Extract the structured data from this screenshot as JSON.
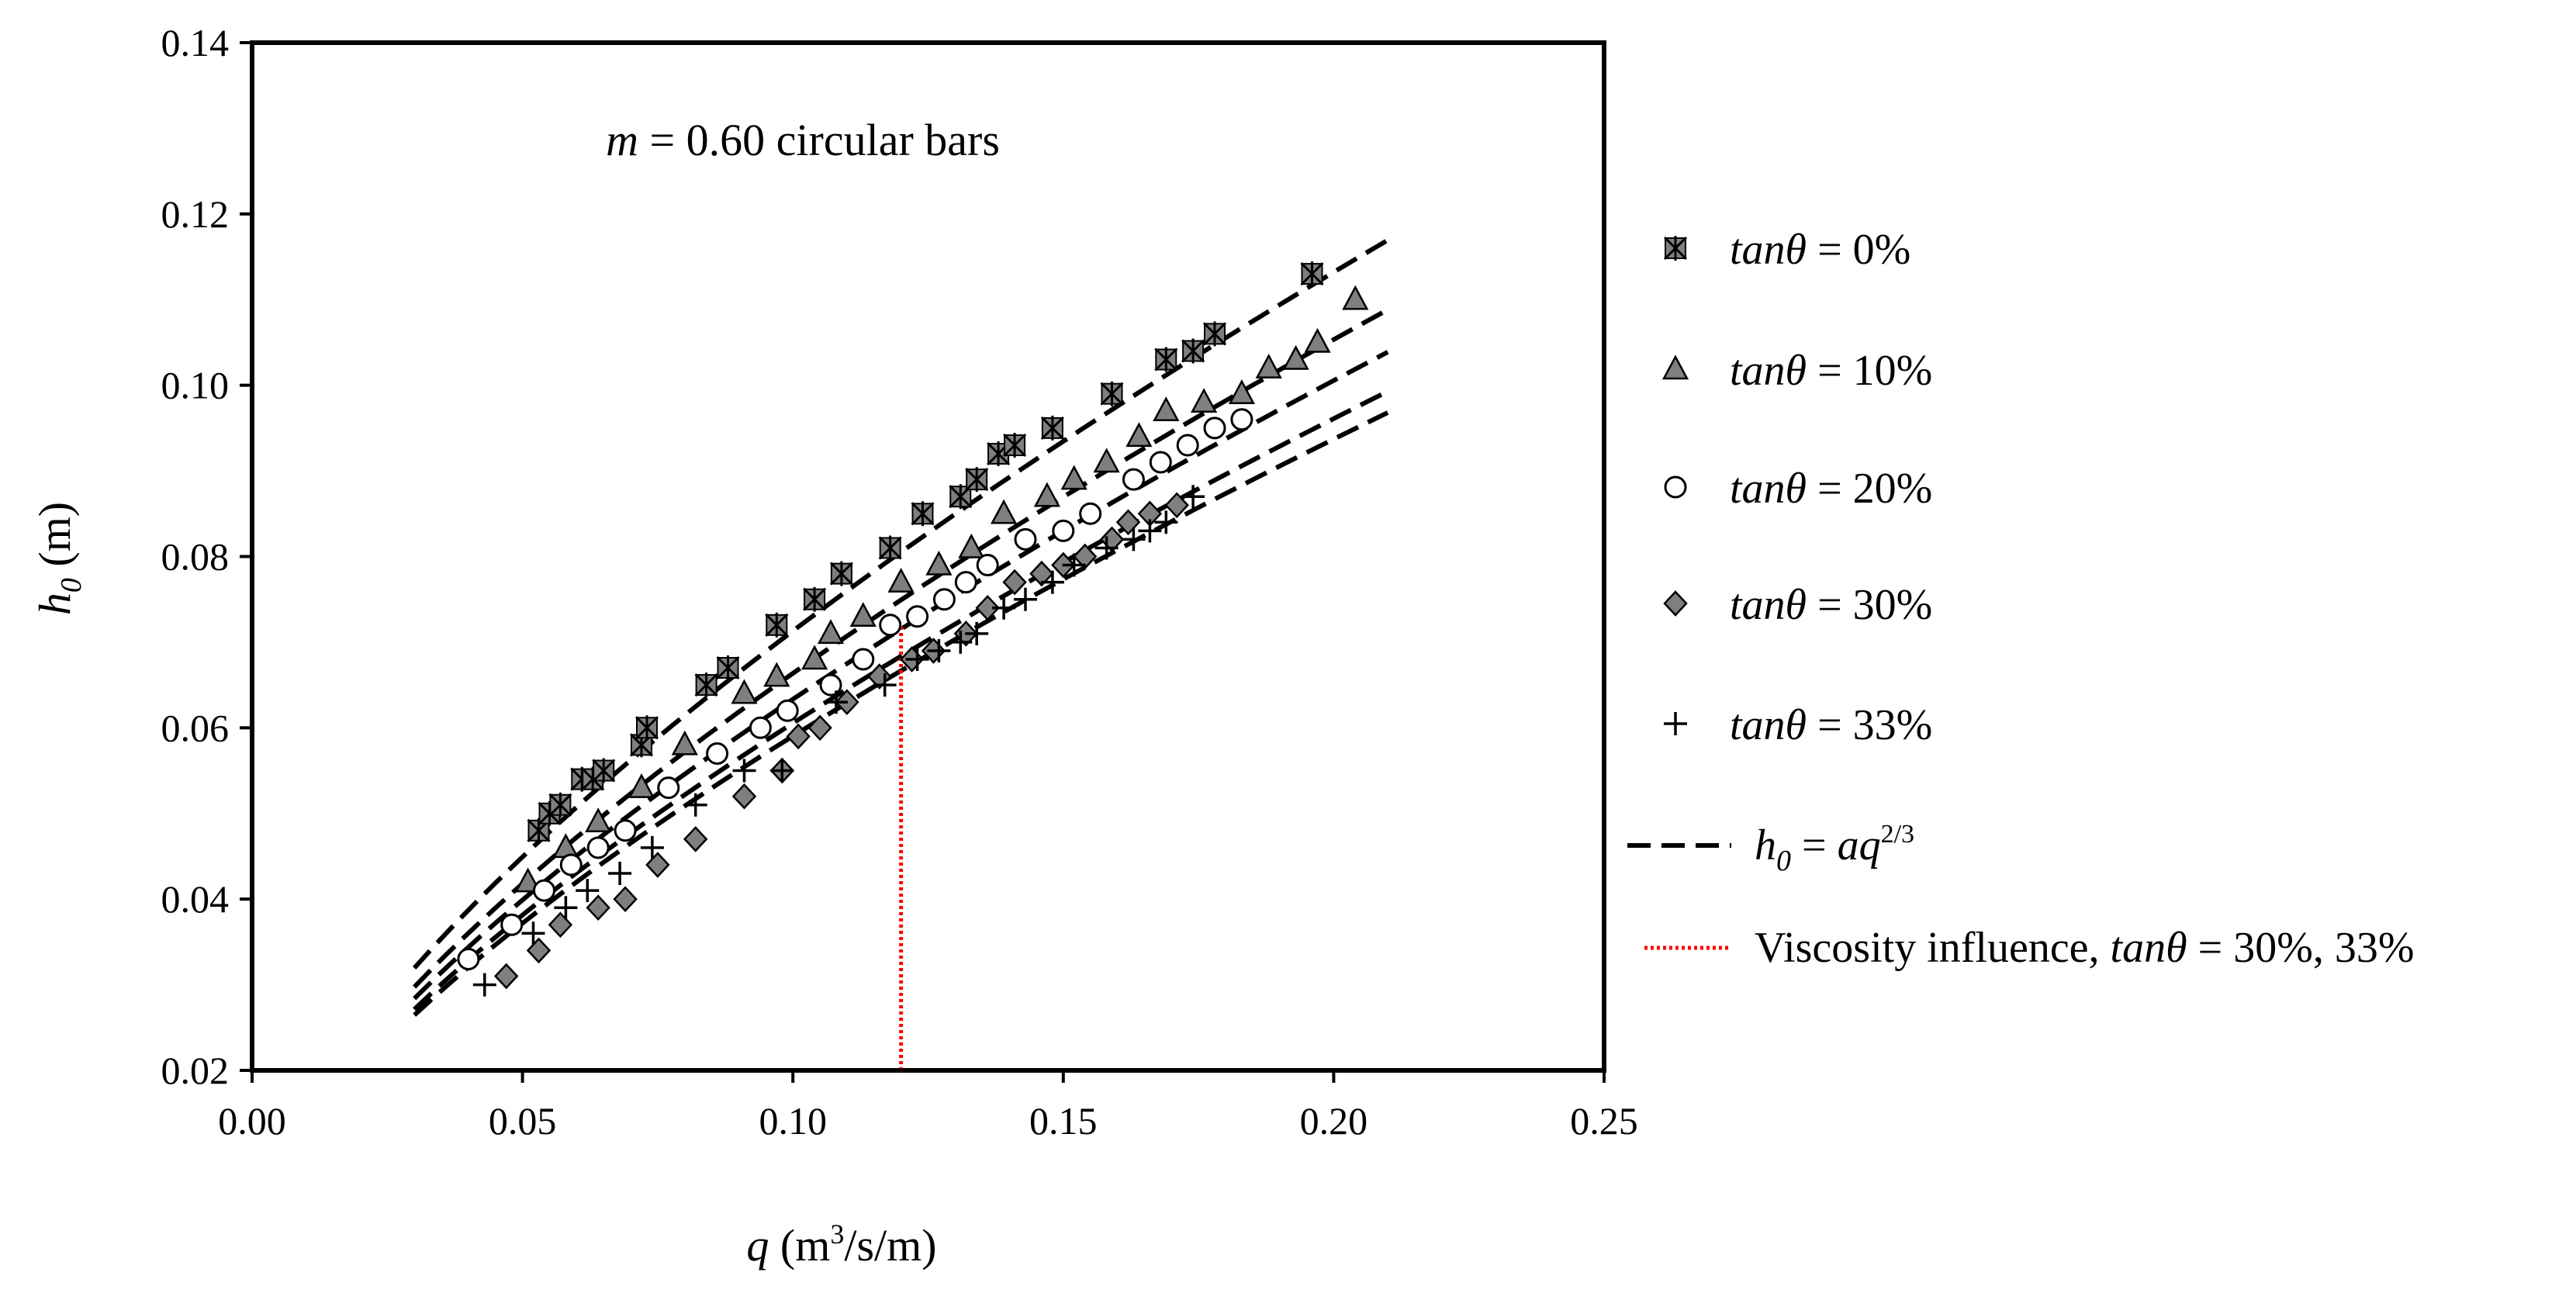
{
  "chart_data": {
    "type": "scatter",
    "annotation": {
      "var": "m",
      "text": " = 0.60 circular bars"
    },
    "xlabel": {
      "var": "q",
      "pre": " (m",
      "sup": "3",
      "post": "/s/m)"
    },
    "ylabel": {
      "var": "h",
      "sub": "0",
      "post": " (m)"
    },
    "xlim": [
      0.0,
      0.25
    ],
    "ylim": [
      0.02,
      0.14
    ],
    "xticks": [
      "0.00",
      "0.05",
      "0.10",
      "0.15",
      "0.20",
      "0.25"
    ],
    "yticks": [
      "0.02",
      "0.04",
      "0.06",
      "0.08",
      "0.10",
      "0.12",
      "0.14"
    ],
    "grid": false,
    "legend_position": "right",
    "colors": {
      "marker_fill": "#7f7f7f",
      "marker_stroke": "#000000",
      "fit_line": "#000000",
      "viscosity_line": "#ff0000"
    },
    "series": [
      {
        "name": "tanθ = 0%",
        "legend": {
          "var": "tanθ",
          "value": " = 0%"
        },
        "marker": "asterisk-square",
        "points": [
          [
            0.053,
            0.048
          ],
          [
            0.055,
            0.05
          ],
          [
            0.057,
            0.051
          ],
          [
            0.061,
            0.054
          ],
          [
            0.063,
            0.054
          ],
          [
            0.065,
            0.055
          ],
          [
            0.072,
            0.058
          ],
          [
            0.073,
            0.06
          ],
          [
            0.084,
            0.065
          ],
          [
            0.088,
            0.067
          ],
          [
            0.097,
            0.072
          ],
          [
            0.104,
            0.075
          ],
          [
            0.109,
            0.078
          ],
          [
            0.118,
            0.081
          ],
          [
            0.124,
            0.085
          ],
          [
            0.131,
            0.087
          ],
          [
            0.134,
            0.089
          ],
          [
            0.138,
            0.092
          ],
          [
            0.141,
            0.093
          ],
          [
            0.148,
            0.095
          ],
          [
            0.159,
            0.099
          ],
          [
            0.169,
            0.103
          ],
          [
            0.174,
            0.104
          ],
          [
            0.178,
            0.106
          ],
          [
            0.196,
            0.113
          ]
        ]
      },
      {
        "name": "tanθ = 10%",
        "legend": {
          "var": "tanθ",
          "value": " = 10%"
        },
        "marker": "triangle",
        "points": [
          [
            0.051,
            0.042
          ],
          [
            0.058,
            0.046
          ],
          [
            0.064,
            0.049
          ],
          [
            0.072,
            0.053
          ],
          [
            0.08,
            0.058
          ],
          [
            0.091,
            0.064
          ],
          [
            0.097,
            0.066
          ],
          [
            0.104,
            0.068
          ],
          [
            0.107,
            0.071
          ],
          [
            0.113,
            0.073
          ],
          [
            0.12,
            0.077
          ],
          [
            0.127,
            0.079
          ],
          [
            0.133,
            0.081
          ],
          [
            0.139,
            0.085
          ],
          [
            0.147,
            0.087
          ],
          [
            0.152,
            0.089
          ],
          [
            0.158,
            0.091
          ],
          [
            0.164,
            0.094
          ],
          [
            0.169,
            0.097
          ],
          [
            0.176,
            0.098
          ],
          [
            0.183,
            0.099
          ],
          [
            0.188,
            0.102
          ],
          [
            0.193,
            0.103
          ],
          [
            0.197,
            0.105
          ],
          [
            0.204,
            0.11
          ]
        ]
      },
      {
        "name": "tanθ = 20%",
        "legend": {
          "var": "tanθ",
          "value": " = 20%"
        },
        "marker": "circle",
        "points": [
          [
            0.04,
            0.033
          ],
          [
            0.048,
            0.037
          ],
          [
            0.054,
            0.041
          ],
          [
            0.059,
            0.044
          ],
          [
            0.064,
            0.046
          ],
          [
            0.069,
            0.048
          ],
          [
            0.077,
            0.053
          ],
          [
            0.086,
            0.057
          ],
          [
            0.094,
            0.06
          ],
          [
            0.099,
            0.062
          ],
          [
            0.107,
            0.065
          ],
          [
            0.113,
            0.068
          ],
          [
            0.118,
            0.072
          ],
          [
            0.123,
            0.073
          ],
          [
            0.128,
            0.075
          ],
          [
            0.132,
            0.077
          ],
          [
            0.136,
            0.079
          ],
          [
            0.143,
            0.082
          ],
          [
            0.15,
            0.083
          ],
          [
            0.155,
            0.085
          ],
          [
            0.163,
            0.089
          ],
          [
            0.168,
            0.091
          ],
          [
            0.173,
            0.093
          ],
          [
            0.178,
            0.095
          ],
          [
            0.183,
            0.096
          ]
        ]
      },
      {
        "name": "tanθ = 30%",
        "legend": {
          "var": "tanθ",
          "value": " = 30%"
        },
        "marker": "diamond",
        "points": [
          [
            0.047,
            0.031
          ],
          [
            0.053,
            0.034
          ],
          [
            0.057,
            0.037
          ],
          [
            0.064,
            0.039
          ],
          [
            0.069,
            0.04
          ],
          [
            0.075,
            0.044
          ],
          [
            0.082,
            0.047
          ],
          [
            0.091,
            0.052
          ],
          [
            0.098,
            0.055
          ],
          [
            0.101,
            0.059
          ],
          [
            0.105,
            0.06
          ],
          [
            0.11,
            0.063
          ],
          [
            0.116,
            0.066
          ],
          [
            0.122,
            0.068
          ],
          [
            0.126,
            0.069
          ],
          [
            0.132,
            0.071
          ],
          [
            0.136,
            0.074
          ],
          [
            0.141,
            0.077
          ],
          [
            0.146,
            0.078
          ],
          [
            0.15,
            0.079
          ],
          [
            0.154,
            0.08
          ],
          [
            0.159,
            0.082
          ],
          [
            0.162,
            0.084
          ],
          [
            0.166,
            0.085
          ],
          [
            0.171,
            0.086
          ]
        ]
      },
      {
        "name": "tanθ = 33%",
        "legend": {
          "var": "tanθ",
          "value": " = 33%"
        },
        "marker": "plus",
        "points": [
          [
            0.043,
            0.03
          ],
          [
            0.052,
            0.036
          ],
          [
            0.058,
            0.039
          ],
          [
            0.062,
            0.041
          ],
          [
            0.068,
            0.043
          ],
          [
            0.074,
            0.046
          ],
          [
            0.082,
            0.051
          ],
          [
            0.091,
            0.055
          ],
          [
            0.098,
            0.055
          ],
          [
            0.108,
            0.063
          ],
          [
            0.117,
            0.065
          ],
          [
            0.123,
            0.068
          ],
          [
            0.127,
            0.069
          ],
          [
            0.131,
            0.07
          ],
          [
            0.134,
            0.071
          ],
          [
            0.139,
            0.074
          ],
          [
            0.143,
            0.075
          ],
          [
            0.148,
            0.077
          ],
          [
            0.152,
            0.079
          ],
          [
            0.158,
            0.081
          ],
          [
            0.163,
            0.082
          ],
          [
            0.166,
            0.083
          ],
          [
            0.169,
            0.084
          ],
          [
            0.174,
            0.087
          ]
        ]
      }
    ],
    "fit_lines": {
      "legend": {
        "var": "h",
        "sub": "0",
        "mid": " = ",
        "rhs": "aq",
        "sup": "2/3"
      },
      "x_range": [
        0.03,
        0.21
      ],
      "coefficients_a": [
        0.331,
        0.308,
        0.294,
        0.281,
        0.274
      ]
    },
    "viscosity_line": {
      "legend": {
        "text": "Viscosity influence, ",
        "var": "tanθ",
        "value": " = 30%, 33%"
      },
      "x": 0.12,
      "y_top": 0.072
    }
  }
}
